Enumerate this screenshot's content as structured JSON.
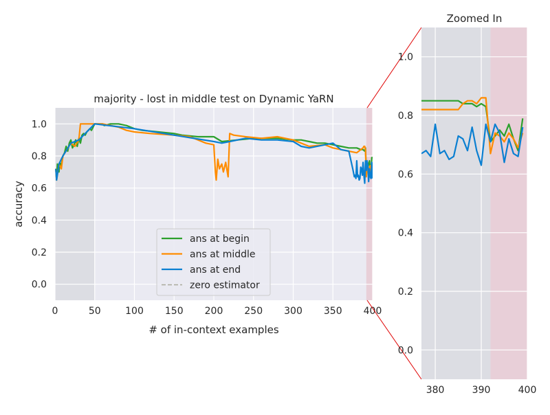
{
  "chart_data": [
    {
      "type": "line",
      "title": "majority - lost in middle test on Dynamic YaRN",
      "xlabel": "# of in-context examples",
      "ylabel": "accuracy",
      "xlim": [
        0,
        400
      ],
      "ylim": [
        -0.1,
        1.1
      ],
      "xticks": [
        0,
        50,
        100,
        150,
        200,
        250,
        300,
        350,
        400
      ],
      "yticks": [
        0.0,
        0.2,
        0.4,
        0.6,
        0.8,
        1.0
      ],
      "grid": true,
      "legend": "lower-center",
      "shaded_regions": [
        {
          "x": [
            0,
            50
          ],
          "color": "#dcdde3"
        },
        {
          "x": [
            392,
            400
          ],
          "color": "#e8cfd8"
        }
      ],
      "series": [
        {
          "name": "ans at begin",
          "color": "#2ca02c",
          "x": [
            1,
            2,
            3,
            5,
            6,
            8,
            10,
            12,
            14,
            16,
            18,
            20,
            22,
            24,
            26,
            28,
            30,
            32,
            34,
            36,
            38,
            40,
            42,
            44,
            46,
            48,
            50,
            60,
            62,
            70,
            80,
            90,
            100,
            110,
            130,
            150,
            160,
            180,
            200,
            210,
            230,
            250,
            280,
            300,
            310,
            320,
            330,
            340,
            350,
            360,
            370,
            380,
            385,
            388,
            390,
            391,
            392,
            394,
            396,
            397,
            398,
            399,
            400
          ],
          "y": [
            0.72,
            0.65,
            0.75,
            0.7,
            0.76,
            0.74,
            0.8,
            0.82,
            0.86,
            0.83,
            0.88,
            0.9,
            0.85,
            0.87,
            0.9,
            0.86,
            0.91,
            0.88,
            0.93,
            0.94,
            0.93,
            0.95,
            0.96,
            0.97,
            0.96,
            0.98,
            1.0,
            1.0,
            0.99,
            1.0,
            1.0,
            0.99,
            0.97,
            0.96,
            0.95,
            0.94,
            0.93,
            0.92,
            0.92,
            0.89,
            0.9,
            0.91,
            0.91,
            0.9,
            0.9,
            0.89,
            0.88,
            0.88,
            0.87,
            0.86,
            0.85,
            0.85,
            0.84,
            0.84,
            0.83,
            0.85,
            0.71,
            0.73,
            0.77,
            0.72,
            0.7,
            0.79,
            0.79
          ]
        },
        {
          "name": "ans at middle",
          "color": "#ff8c00",
          "x": [
            1,
            2,
            5,
            8,
            10,
            15,
            20,
            25,
            30,
            32,
            40,
            50,
            60,
            70,
            80,
            90,
            100,
            120,
            150,
            170,
            190,
            200,
            202,
            203,
            205,
            207,
            210,
            212,
            215,
            218,
            220,
            225,
            240,
            260,
            280,
            300,
            320,
            340,
            350,
            360,
            370,
            380,
            388,
            389,
            390,
            391,
            392,
            393,
            395,
            397,
            398,
            399,
            400
          ],
          "y": [
            0.72,
            0.65,
            0.75,
            0.72,
            0.8,
            0.84,
            0.88,
            0.86,
            0.9,
            1.0,
            1.0,
            1.0,
            1.0,
            0.99,
            0.98,
            0.96,
            0.95,
            0.94,
            0.93,
            0.92,
            0.88,
            0.87,
            0.7,
            0.65,
            0.78,
            0.72,
            0.75,
            0.7,
            0.76,
            0.67,
            0.94,
            0.93,
            0.92,
            0.91,
            0.92,
            0.9,
            0.86,
            0.87,
            0.85,
            0.84,
            0.83,
            0.82,
            0.85,
            0.86,
            0.86,
            0.84,
            0.67,
            0.72,
            0.71,
            0.74,
            0.69,
            0.72,
            0.74
          ]
        },
        {
          "name": "ans at end",
          "color": "#0a7fd1",
          "x": [
            1,
            2,
            5,
            10,
            15,
            20,
            30,
            40,
            50,
            100,
            150,
            200,
            210,
            220,
            240,
            260,
            280,
            300,
            310,
            320,
            340,
            350,
            360,
            370,
            375,
            377,
            378,
            379,
            380,
            381,
            382,
            383,
            384,
            385,
            386,
            387,
            388,
            389,
            390,
            391,
            392,
            393,
            394,
            395,
            396,
            397,
            398,
            399,
            400
          ],
          "y": [
            0.72,
            0.65,
            0.75,
            0.8,
            0.84,
            0.88,
            0.9,
            0.95,
            1.0,
            0.97,
            0.93,
            0.89,
            0.88,
            0.89,
            0.91,
            0.9,
            0.9,
            0.89,
            0.86,
            0.85,
            0.87,
            0.88,
            0.84,
            0.83,
            0.72,
            0.67,
            0.68,
            0.66,
            0.77,
            0.67,
            0.68,
            0.65,
            0.66,
            0.73,
            0.72,
            0.68,
            0.76,
            0.68,
            0.63,
            0.77,
            0.71,
            0.77,
            0.74,
            0.64,
            0.72,
            0.67,
            0.66,
            0.76,
            0.66
          ]
        },
        {
          "name": "zero estimator",
          "color": "#a8a89a",
          "dashed": true,
          "x": [],
          "y": []
        }
      ]
    },
    {
      "type": "line",
      "title": "Zoomed In",
      "xlim": [
        377,
        400
      ],
      "ylim": [
        -0.1,
        1.1
      ],
      "xticks": [
        380,
        390,
        400
      ],
      "yticks": [
        0.0,
        0.2,
        0.4,
        0.6,
        0.8,
        1.0
      ],
      "grid": true,
      "shaded_regions": [
        {
          "x": [
            377,
            392
          ],
          "color": "#dcdde3"
        },
        {
          "x": [
            392,
            400
          ],
          "color": "#e8cfd8"
        }
      ],
      "series": [
        {
          "color": "#2ca02c",
          "x": [
            377,
            378,
            379,
            380,
            381,
            382,
            383,
            384,
            385,
            386,
            387,
            388,
            389,
            390,
            391,
            392,
            393,
            394,
            395,
            396,
            397,
            398,
            399
          ],
          "y": [
            0.85,
            0.85,
            0.85,
            0.85,
            0.85,
            0.85,
            0.85,
            0.85,
            0.85,
            0.84,
            0.84,
            0.84,
            0.83,
            0.84,
            0.83,
            0.71,
            0.73,
            0.75,
            0.73,
            0.77,
            0.72,
            0.68,
            0.79
          ]
        },
        {
          "color": "#ff8c00",
          "x": [
            377,
            378,
            379,
            380,
            381,
            382,
            383,
            384,
            385,
            386,
            387,
            388,
            389,
            390,
            391,
            392,
            393,
            394,
            395,
            396,
            397,
            398,
            399
          ],
          "y": [
            0.82,
            0.82,
            0.82,
            0.82,
            0.82,
            0.82,
            0.82,
            0.82,
            0.82,
            0.84,
            0.85,
            0.85,
            0.84,
            0.86,
            0.86,
            0.67,
            0.74,
            0.73,
            0.71,
            0.74,
            0.72,
            0.69,
            0.74
          ]
        },
        {
          "color": "#0a7fd1",
          "x": [
            377,
            378,
            379,
            380,
            381,
            382,
            383,
            384,
            385,
            386,
            387,
            388,
            389,
            390,
            391,
            392,
            393,
            394,
            395,
            396,
            397,
            398,
            399
          ],
          "y": [
            0.67,
            0.68,
            0.66,
            0.77,
            0.67,
            0.68,
            0.65,
            0.66,
            0.73,
            0.72,
            0.68,
            0.76,
            0.68,
            0.63,
            0.77,
            0.71,
            0.77,
            0.74,
            0.64,
            0.72,
            0.67,
            0.66,
            0.76
          ]
        }
      ]
    }
  ]
}
